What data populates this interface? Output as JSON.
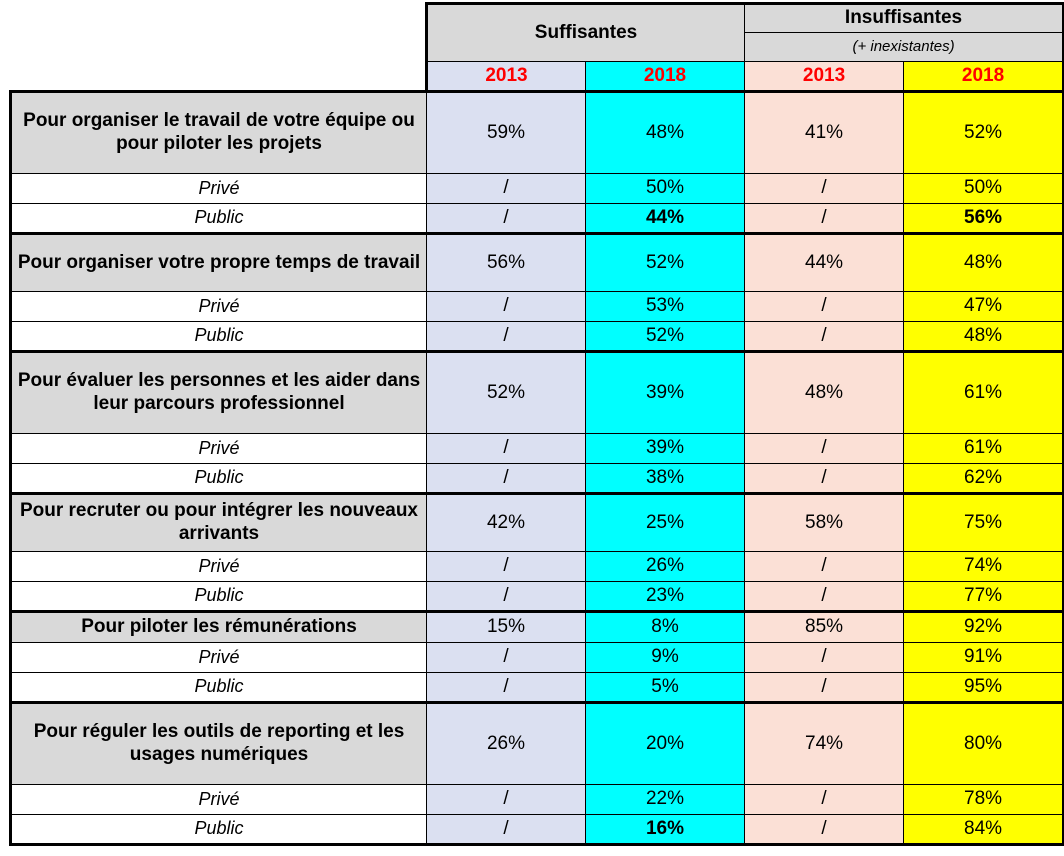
{
  "header": {
    "suffisantes": "Suffisantes",
    "insuffisantes": "Insuffisantes",
    "insuffisantes_note": "(+ inexistantes)",
    "years": [
      "2013",
      "2018",
      "2013",
      "2018"
    ]
  },
  "groups": [
    {
      "label": "Pour organiser le travail de votre équipe ou pour piloter les projets",
      "values": [
        "59%",
        "48%",
        "41%",
        "52%"
      ],
      "rows": [
        {
          "label": "Privé",
          "values": [
            "/",
            "50%",
            "/",
            "50%"
          ]
        },
        {
          "label": "Public",
          "values": [
            "/",
            "44%",
            "/",
            "56%"
          ]
        }
      ]
    },
    {
      "label": "Pour organiser votre propre temps de travail",
      "values": [
        "56%",
        "52%",
        "44%",
        "48%"
      ],
      "rows": [
        {
          "label": "Privé",
          "values": [
            "/",
            "53%",
            "/",
            "47%"
          ]
        },
        {
          "label": "Public",
          "values": [
            "/",
            "52%",
            "/",
            "48%"
          ]
        }
      ]
    },
    {
      "label": "Pour évaluer les personnes et les aider dans leur parcours professionnel",
      "values": [
        "52%",
        "39%",
        "48%",
        "61%"
      ],
      "rows": [
        {
          "label": "Privé",
          "values": [
            "/",
            "39%",
            "/",
            "61%"
          ]
        },
        {
          "label": "Public",
          "values": [
            "/",
            "38%",
            "/",
            "62%"
          ]
        }
      ]
    },
    {
      "label": "Pour recruter ou pour intégrer les nouveaux arrivants",
      "values": [
        "42%",
        "25%",
        "58%",
        "75%"
      ],
      "rows": [
        {
          "label": "Privé",
          "values": [
            "/",
            "26%",
            "/",
            "74%"
          ]
        },
        {
          "label": "Public",
          "values": [
            "/",
            "23%",
            "/",
            "77%"
          ]
        }
      ]
    },
    {
      "label": "Pour piloter les rémunérations",
      "values": [
        "15%",
        "8%",
        "85%",
        "92%"
      ],
      "rows": [
        {
          "label": "Privé",
          "values": [
            "/",
            "9%",
            "/",
            "91%"
          ]
        },
        {
          "label": "Public",
          "values": [
            "/",
            "5%",
            "/",
            "95%"
          ]
        }
      ]
    },
    {
      "label": "Pour réguler les outils de reporting et les usages numériques",
      "values": [
        "26%",
        "20%",
        "74%",
        "80%"
      ],
      "rows": [
        {
          "label": "Privé",
          "values": [
            "/",
            "22%",
            "/",
            "78%"
          ]
        },
        {
          "label": "Public",
          "values": [
            "/",
            "16%",
            "/",
            "84%"
          ]
        }
      ]
    }
  ],
  "colors": {
    "col_2013_suff": "#dbe0f1",
    "col_2018_suff": "#00ffff",
    "col_2013_insuff": "#fbe0d6",
    "col_2018_insuff": "#ffff00",
    "year_text": "#ff0000",
    "header_bg": "#d9d9d9"
  }
}
